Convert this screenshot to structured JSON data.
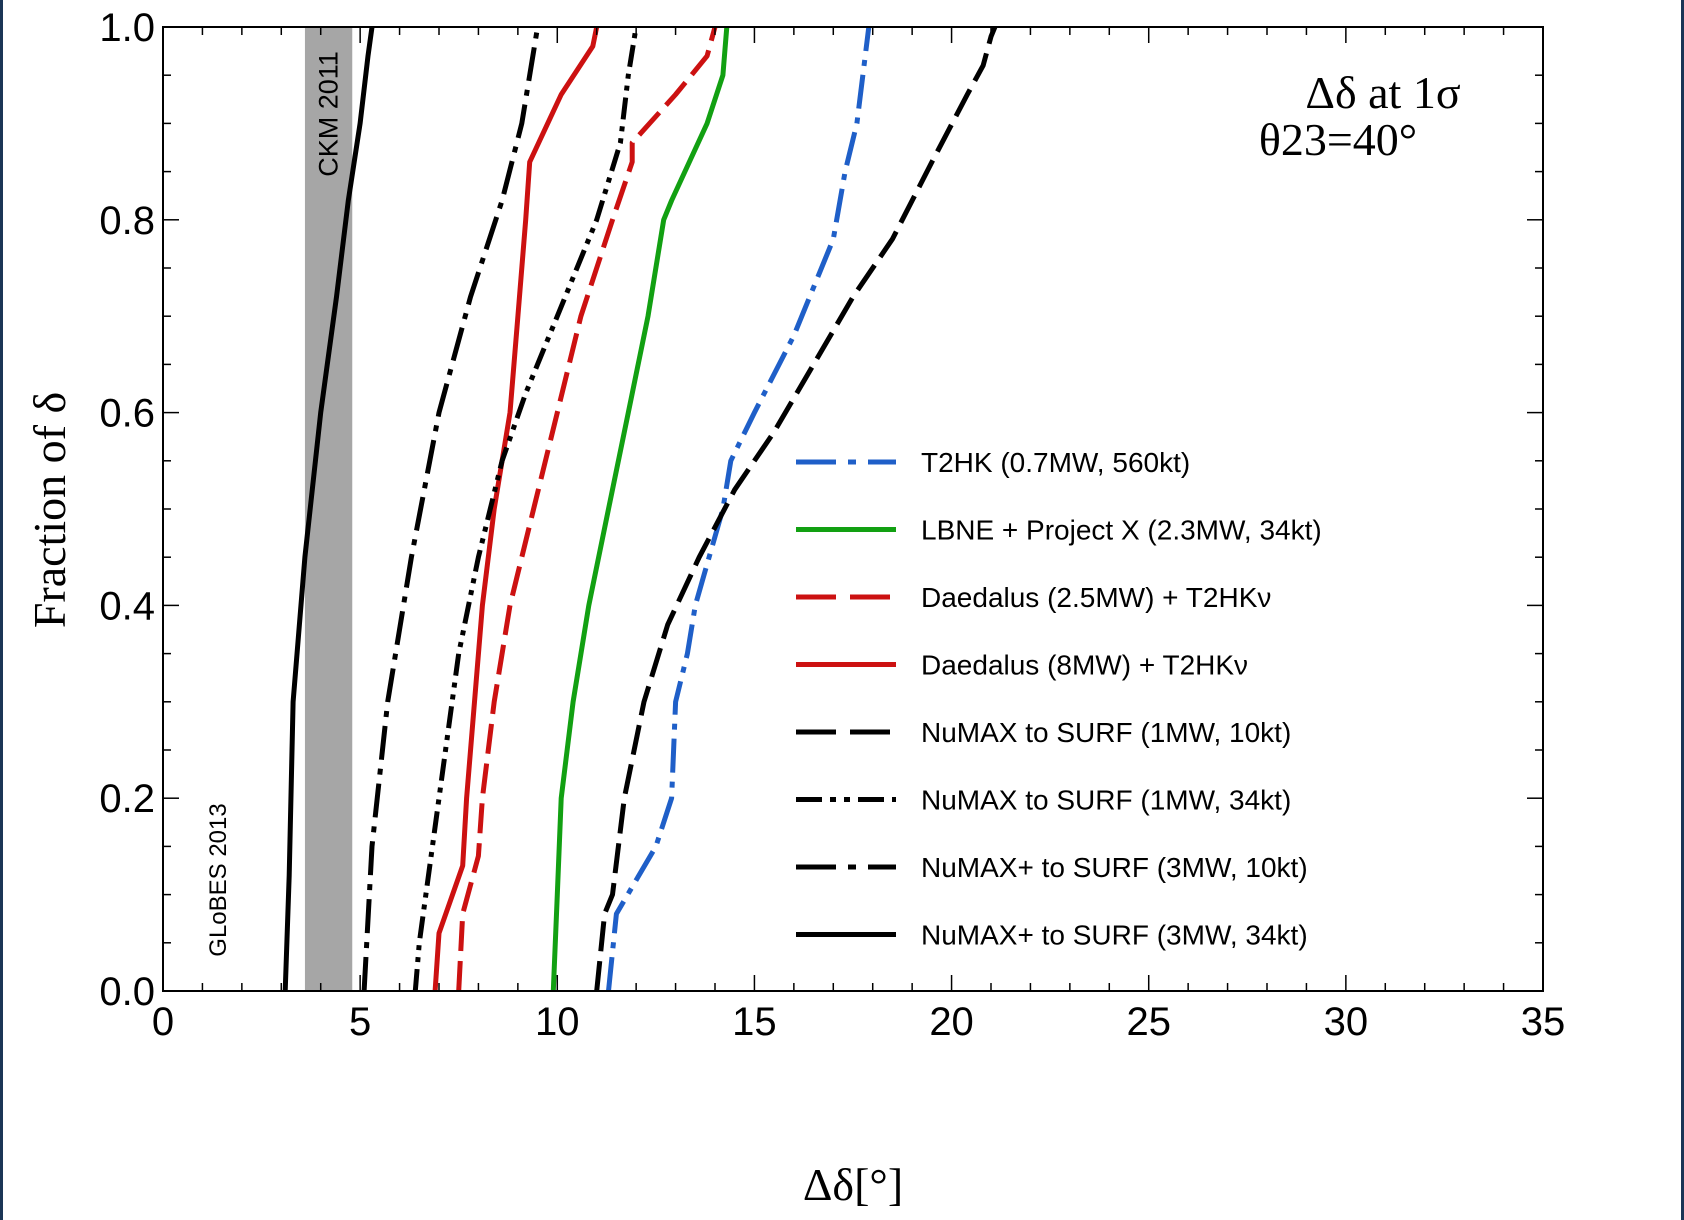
{
  "chart_data": {
    "type": "line",
    "xlabel": "Δδ[°]",
    "ylabel": "Fraction of δ",
    "xlim": [
      0,
      35
    ],
    "ylim": [
      0,
      1
    ],
    "x_ticks": [
      "0",
      "5",
      "10",
      "15",
      "20",
      "25",
      "30",
      "35"
    ],
    "y_ticks": [
      "0.0",
      "0.2",
      "0.4",
      "0.6",
      "0.8",
      "1.0"
    ],
    "title": "Δδ at 1σ",
    "subtitle": "θ23=40°",
    "watermark": "GLoBES 2013",
    "band": {
      "label": "CKM 2011",
      "x_range": [
        3.6,
        4.8
      ],
      "color": "#a6a6a6"
    },
    "legend_position": "center-right",
    "series": [
      {
        "name": "T2HK (0.7MW, 560kt)",
        "color": "#1f5fc8",
        "dash": "dashdot",
        "points": [
          [
            11.3,
            0
          ],
          [
            11.5,
            0.08
          ],
          [
            12.5,
            0.15
          ],
          [
            12.9,
            0.2
          ],
          [
            13.0,
            0.3
          ],
          [
            13.3,
            0.35
          ],
          [
            13.5,
            0.4
          ],
          [
            14.2,
            0.5
          ],
          [
            14.4,
            0.55
          ],
          [
            15.0,
            0.6
          ],
          [
            16.0,
            0.68
          ],
          [
            17.0,
            0.78
          ],
          [
            17.3,
            0.85
          ],
          [
            17.6,
            0.9
          ],
          [
            17.9,
            1.0
          ]
        ]
      },
      {
        "name": "LBNE + Project X (2.3MW, 34kt)",
        "color": "#12a012",
        "dash": "solid",
        "points": [
          [
            9.9,
            0
          ],
          [
            10.0,
            0.1
          ],
          [
            10.1,
            0.2
          ],
          [
            10.4,
            0.3
          ],
          [
            10.8,
            0.4
          ],
          [
            11.3,
            0.5
          ],
          [
            11.8,
            0.6
          ],
          [
            12.3,
            0.7
          ],
          [
            12.7,
            0.8
          ],
          [
            12.9,
            0.82
          ],
          [
            13.8,
            0.9
          ],
          [
            14.2,
            0.95
          ],
          [
            14.3,
            1.0
          ]
        ]
      },
      {
        "name": "Daedalus (2.5MW) + T2HKν",
        "color": "#cc1111",
        "dash": "longdash",
        "points": [
          [
            7.5,
            0
          ],
          [
            7.6,
            0.08
          ],
          [
            8.0,
            0.14
          ],
          [
            8.1,
            0.2
          ],
          [
            8.4,
            0.3
          ],
          [
            8.8,
            0.4
          ],
          [
            9.4,
            0.5
          ],
          [
            10.0,
            0.6
          ],
          [
            10.6,
            0.7
          ],
          [
            11.4,
            0.8
          ],
          [
            11.9,
            0.86
          ],
          [
            11.9,
            0.88
          ],
          [
            13.0,
            0.93
          ],
          [
            13.8,
            0.97
          ],
          [
            14.0,
            1.0
          ]
        ]
      },
      {
        "name": "Daedalus (8MW) + T2HKν",
        "color": "#cc1111",
        "dash": "solid",
        "points": [
          [
            6.9,
            0
          ],
          [
            7.0,
            0.06
          ],
          [
            7.6,
            0.13
          ],
          [
            7.7,
            0.2
          ],
          [
            7.9,
            0.3
          ],
          [
            8.1,
            0.4
          ],
          [
            8.4,
            0.5
          ],
          [
            8.8,
            0.6
          ],
          [
            9.0,
            0.7
          ],
          [
            9.2,
            0.8
          ],
          [
            9.3,
            0.86
          ],
          [
            10.1,
            0.93
          ],
          [
            10.9,
            0.98
          ],
          [
            11.0,
            1.0
          ]
        ]
      },
      {
        "name": "NuMAX to SURF (1MW, 10kt)",
        "color": "#000000",
        "dash": "longdash",
        "points": [
          [
            11.0,
            0
          ],
          [
            11.2,
            0.08
          ],
          [
            11.4,
            0.1
          ],
          [
            11.7,
            0.2
          ],
          [
            12.2,
            0.3
          ],
          [
            12.8,
            0.38
          ],
          [
            13.6,
            0.45
          ],
          [
            14.5,
            0.52
          ],
          [
            15.5,
            0.58
          ],
          [
            16.5,
            0.65
          ],
          [
            17.5,
            0.72
          ],
          [
            18.5,
            0.78
          ],
          [
            19.5,
            0.86
          ],
          [
            20.4,
            0.93
          ],
          [
            20.8,
            0.96
          ],
          [
            21.0,
            0.99
          ],
          [
            21.1,
            1.0
          ]
        ]
      },
      {
        "name": "NuMAX to SURF (1MW, 34kt)",
        "color": "#000000",
        "dash": "dashdotdot",
        "points": [
          [
            6.4,
            0
          ],
          [
            6.5,
            0.05
          ],
          [
            7.0,
            0.2
          ],
          [
            7.5,
            0.35
          ],
          [
            8.0,
            0.45
          ],
          [
            8.6,
            0.55
          ],
          [
            9.2,
            0.62
          ],
          [
            10.0,
            0.7
          ],
          [
            11.0,
            0.8
          ],
          [
            11.6,
            0.88
          ],
          [
            11.8,
            0.95
          ],
          [
            12.0,
            1.0
          ]
        ]
      },
      {
        "name": "NuMAX+ to SURF (3MW, 10kt)",
        "color": "#000000",
        "dash": "dashdot",
        "points": [
          [
            5.1,
            0
          ],
          [
            5.3,
            0.15
          ],
          [
            5.7,
            0.3
          ],
          [
            6.3,
            0.45
          ],
          [
            7.0,
            0.6
          ],
          [
            7.8,
            0.72
          ],
          [
            8.6,
            0.82
          ],
          [
            9.1,
            0.9
          ],
          [
            9.3,
            0.95
          ],
          [
            9.5,
            1.0
          ]
        ]
      },
      {
        "name": "NuMAX+ to SURF (3MW, 34kt)",
        "color": "#000000",
        "dash": "solid",
        "points": [
          [
            3.1,
            0
          ],
          [
            3.2,
            0.12
          ],
          [
            3.3,
            0.3
          ],
          [
            3.6,
            0.45
          ],
          [
            4.0,
            0.6
          ],
          [
            4.4,
            0.72
          ],
          [
            4.7,
            0.82
          ],
          [
            5.0,
            0.9
          ],
          [
            5.2,
            0.97
          ],
          [
            5.3,
            1.0
          ]
        ]
      }
    ]
  }
}
